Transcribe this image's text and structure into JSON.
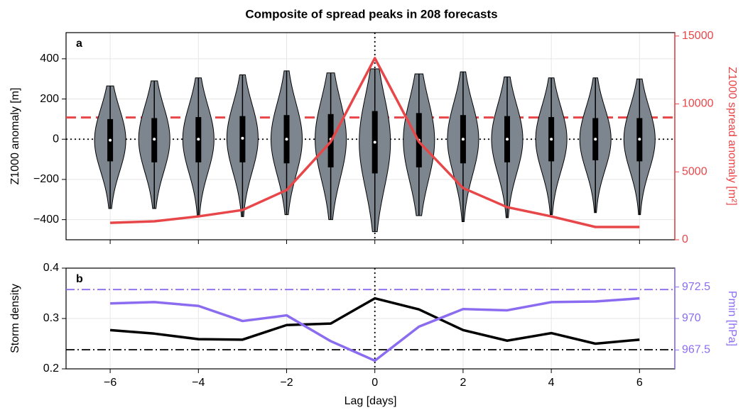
{
  "chart_data": [
    {
      "type": "violin",
      "title": "Composite of spread peaks in 208 forecasts",
      "panel_label": "a",
      "ylabel": "Z1000 anomaly [m]",
      "y2label": "Z1000 spread anomaly [m²]",
      "y2_color": "#e8474a",
      "x": [
        -6,
        -5,
        -4,
        -3,
        -2,
        -1,
        0,
        1,
        2,
        3,
        4,
        5,
        6
      ],
      "xlim": [
        -7,
        6.8
      ],
      "xticks": [
        -6,
        -4,
        -2,
        0,
        2,
        4,
        6
      ],
      "ylim": [
        -500,
        530
      ],
      "yticks": [
        {
          "value": -400,
          "label": "−400"
        },
        {
          "value": -200,
          "label": "−200"
        },
        0,
        200,
        400
      ],
      "y2lim": [
        0,
        15250
      ],
      "y2ticks": [
        0,
        5000,
        10000,
        15000
      ],
      "grid": true,
      "violins": {
        "color": "#7d868f",
        "max": [
          265,
          290,
          305,
          320,
          340,
          330,
          350,
          325,
          335,
          310,
          305,
          305,
          300
        ],
        "q3": [
          100,
          105,
          110,
          115,
          120,
          125,
          140,
          130,
          120,
          115,
          110,
          105,
          105
        ],
        "median": [
          -5,
          0,
          0,
          5,
          0,
          0,
          -15,
          -5,
          0,
          0,
          0,
          0,
          0
        ],
        "q1": [
          -110,
          -115,
          -115,
          -115,
          -120,
          -140,
          -170,
          -140,
          -120,
          -115,
          -110,
          -105,
          -110
        ],
        "min": [
          -345,
          -345,
          -380,
          -385,
          -375,
          -400,
          -460,
          -380,
          -410,
          -390,
          -375,
          -365,
          -375
        ]
      },
      "series": [
        {
          "color": "#e8474a",
          "axis": "y2",
          "values": [
            1250,
            1360,
            1720,
            2190,
            3660,
            7210,
            13375,
            7210,
            3810,
            2400,
            1720,
            940,
            940
          ]
        }
      ],
      "hlines": [
        {
          "value": 9000,
          "axis": "y2",
          "color": "#e8474a",
          "style": "dashed"
        },
        {
          "value": 0,
          "axis": "y",
          "color": "#000000",
          "style": "dotted"
        }
      ],
      "vlines": [
        {
          "value": 0,
          "color": "#000000",
          "style": "dotted"
        }
      ]
    },
    {
      "type": "line",
      "panel_label": "b",
      "ylabel": "Storm density",
      "y2label": "Pmin [hPa]",
      "y2_color": "#8b6cf0",
      "xlabel": "Lag [days]",
      "x": [
        -6,
        -5,
        -4,
        -3,
        -2,
        -1,
        0,
        1,
        2,
        3,
        4,
        5,
        6
      ],
      "xlim": [
        -7,
        6.8
      ],
      "xticks": [
        {
          "value": -6,
          "label": "−6"
        },
        {
          "value": -4,
          "label": "−4"
        },
        {
          "value": -2,
          "label": "−2"
        },
        0,
        2,
        4,
        6
      ],
      "ylim": [
        0.2,
        0.4
      ],
      "yticks": [
        0.2,
        0.3,
        0.4
      ],
      "y2lim": [
        966,
        974
      ],
      "y2ticks": [
        967.5,
        970,
        972.5
      ],
      "grid": true,
      "series": [
        {
          "color": "#000000",
          "axis": "y",
          "values": [
            0.277,
            0.27,
            0.259,
            0.258,
            0.287,
            0.29,
            0.34,
            0.318,
            0.277,
            0.256,
            0.271,
            0.25,
            0.258
          ]
        },
        {
          "color": "#8b6cf0",
          "axis": "y2",
          "values": [
            971.2,
            971.3,
            971.0,
            969.8,
            970.25,
            968.2,
            966.65,
            969.35,
            970.75,
            970.65,
            971.3,
            971.35,
            971.6
          ]
        }
      ],
      "hlines": [
        {
          "value": 0.238,
          "axis": "y",
          "color": "#000000",
          "style": "dashdot"
        },
        {
          "value": 972.3,
          "axis": "y2",
          "color": "#8b6cf0",
          "style": "dashdot"
        }
      ],
      "vlines": [
        {
          "value": 0,
          "color": "#000000",
          "style": "dotted"
        }
      ]
    }
  ]
}
